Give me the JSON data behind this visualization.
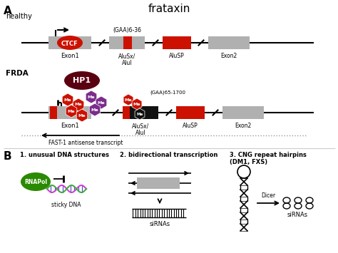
{
  "title": "frataxin",
  "label_A": "A",
  "label_B": "B",
  "label_healthy": "healthy",
  "label_FRDA": "FRDA",
  "label_Exon1_h": "Exon1",
  "label_Exon2_h": "Exon2",
  "label_AluSx_h": "AluSx/\nAluI",
  "label_AluSP_h": "AluSP",
  "label_GAA_h": "(GAA)6-36",
  "label_Exon1_f": "Exon1",
  "label_Exon2_f": "Exon2",
  "label_AluSx_f": "AluSx/\nAluI",
  "label_AluSP_f": "AluSP",
  "label_GAA_f": "(GAA)65-1700",
  "label_CTCF": "CTCF",
  "label_HP1": "HP1",
  "label_FAST1": "FAST-1 antisense transcript",
  "label_b1": "1. unusual DNA structures",
  "label_b2": "2. bidirectional transcription",
  "label_b3": "3. CNG repeat hairpins\n(DM1, FXS)",
  "label_sticky": "sticky DNA",
  "label_siRNAs_b2": "siRNAs",
  "label_Dicer": "Dicer",
  "label_siRNAs_b3": "siRNAs",
  "label_RNAPol": "RNAPol",
  "colors": {
    "gray_box": "#b0b0b0",
    "red_box": "#cc1100",
    "black": "#000000",
    "white": "#ffffff",
    "CTCF_red": "#cc1100",
    "CTCF_text": "#ffffff",
    "HP1_dark": "#5a0010",
    "HP1_text": "#ffffff",
    "me_red": "#cc1100",
    "me_purple": "#7b2d8b",
    "me_text": "#ffffff",
    "RNAPol_green": "#2a8a00",
    "RNAPol_text": "#ffffff",
    "background": "#ffffff",
    "dotted_line": "#999999"
  }
}
